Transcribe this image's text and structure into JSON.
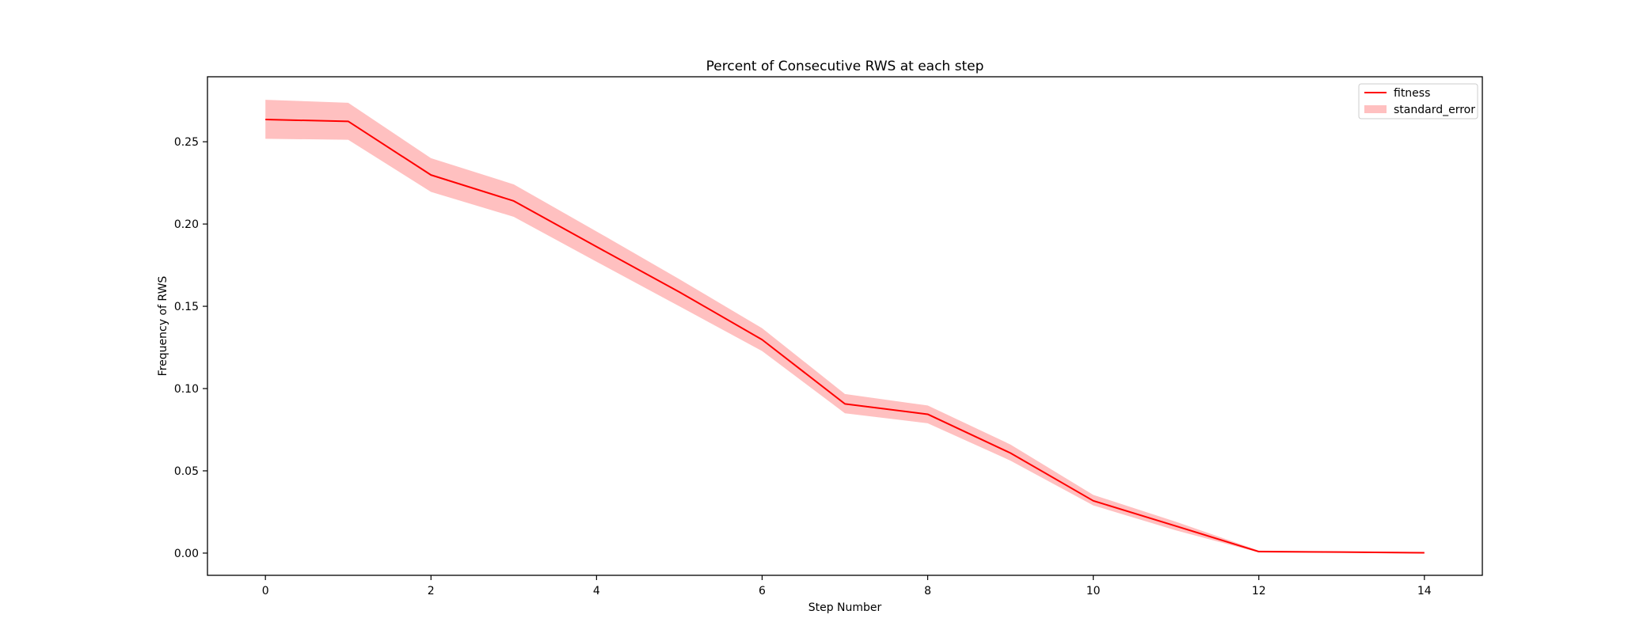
{
  "chart_data": {
    "type": "line",
    "title": "Percent of Consecutive RWS at each step",
    "xlabel": "Step Number",
    "ylabel": "Frequency of RWS",
    "xlim": [
      -0.7,
      14.7
    ],
    "ylim": [
      -0.0135,
      0.2895
    ],
    "xticks": [
      0,
      2,
      4,
      6,
      8,
      10,
      12,
      14
    ],
    "xtick_labels": [
      "0",
      "2",
      "4",
      "6",
      "8",
      "10",
      "12",
      "14"
    ],
    "yticks": [
      0.0,
      0.05,
      0.1,
      0.15,
      0.2,
      0.25
    ],
    "ytick_labels": [
      "0.00",
      "0.05",
      "0.10",
      "0.15",
      "0.20",
      "0.25"
    ],
    "grid": false,
    "legend_position": "top-right",
    "series": [
      {
        "name": "fitness",
        "kind": "line",
        "color": "#ff0000",
        "x": [
          0,
          1,
          2,
          3,
          4,
          5,
          6,
          7,
          8,
          9,
          10,
          11,
          12,
          13,
          14
        ],
        "y": [
          0.2635,
          0.2624,
          0.2298,
          0.214,
          0.1862,
          0.1587,
          0.1297,
          0.0907,
          0.0844,
          0.0608,
          0.0318,
          0.0164,
          0.0009,
          0.0006,
          0.0002
        ]
      },
      {
        "name": "standard_error",
        "kind": "band",
        "color": "#ffc0c0",
        "x": [
          0,
          1,
          2,
          3,
          4,
          5,
          6,
          7,
          8,
          9,
          10,
          11,
          12,
          13,
          14
        ],
        "upper": [
          0.2755,
          0.2737,
          0.24,
          0.2241,
          0.1955,
          0.1665,
          0.1367,
          0.0967,
          0.0897,
          0.066,
          0.0354,
          0.019,
          0.0015,
          0.0009,
          0.0004
        ],
        "lower": [
          0.2518,
          0.2512,
          0.2195,
          0.2044,
          0.1771,
          0.15,
          0.1228,
          0.085,
          0.0789,
          0.0562,
          0.029,
          0.0138,
          0.0004,
          0.0003,
          0.0
        ]
      }
    ]
  }
}
